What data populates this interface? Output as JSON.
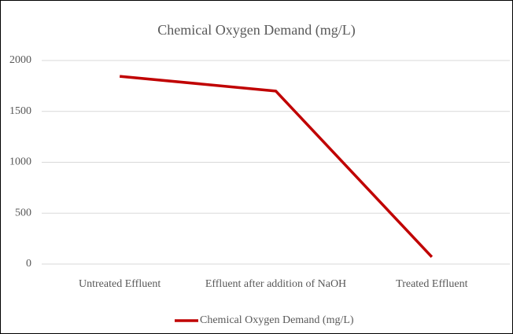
{
  "chart_data": {
    "type": "line",
    "title": "Chemical Oxygen Demand (mg/L)",
    "categories": [
      "Untreated Effluent",
      "Effluent after addition of  NaOH",
      "Treated Effluent"
    ],
    "series": [
      {
        "name": "Chemical Oxygen Demand (mg/L)",
        "color": "#c00000",
        "values": [
          1845,
          1700,
          70
        ]
      }
    ],
    "ylim": [
      0,
      2000
    ],
    "yticks": [
      0,
      500,
      1000,
      1500,
      2000
    ],
    "grid": true,
    "legend": "bottom"
  }
}
